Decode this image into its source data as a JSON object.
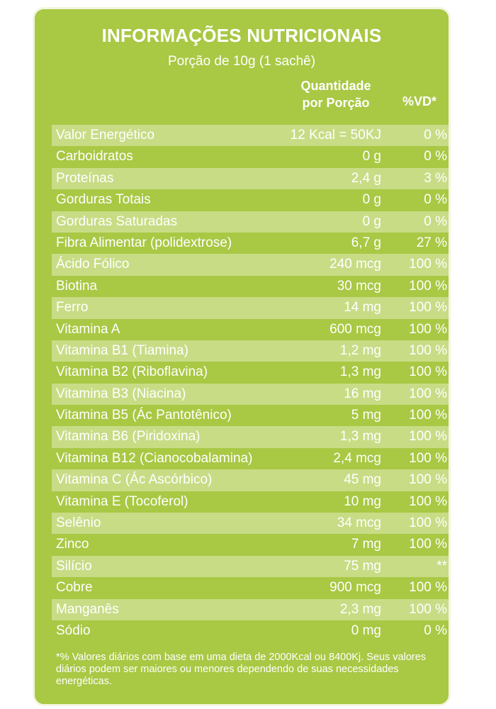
{
  "panel": {
    "title": "INFORMAÇÕES NUTRICIONAIS",
    "subtitle": "Porção de 10g (1 sachê)",
    "columns": {
      "qty_line1": "Quantidade",
      "qty_line2": "por Porção",
      "vd": "%VD*"
    },
    "rows": [
      {
        "name": "Valor Energético",
        "qty": "12 Kcal = 50KJ",
        "vd": "0 %"
      },
      {
        "name": "Carboidratos",
        "qty": "0 g",
        "vd": "0 %"
      },
      {
        "name": "Proteínas",
        "qty": "2,4 g",
        "vd": "3 %"
      },
      {
        "name": "Gorduras Totais",
        "qty": "0 g",
        "vd": "0 %"
      },
      {
        "name": "Gorduras Saturadas",
        "qty": "0 g",
        "vd": "0 %"
      },
      {
        "name": "Fibra Alimentar (polidextrose)",
        "qty": "6,7 g",
        "vd": "27 %"
      },
      {
        "name": "Ácido Fólico",
        "qty": "240 mcg",
        "vd": "100 %"
      },
      {
        "name": "Biotina",
        "qty": "30 mcg",
        "vd": "100 %"
      },
      {
        "name": "Ferro",
        "qty": "14 mg",
        "vd": "100 %"
      },
      {
        "name": "Vitamina A",
        "qty": "600 mcg",
        "vd": "100 %"
      },
      {
        "name": "Vitamina B1 (Tiamina)",
        "qty": "1,2 mg",
        "vd": "100 %"
      },
      {
        "name": "Vitamina B2 (Riboflavina)",
        "qty": "1,3 mg",
        "vd": "100 %"
      },
      {
        "name": "Vitamina B3 (Niacina)",
        "qty": "16 mg",
        "vd": "100 %"
      },
      {
        "name": "Vitamina B5 (Ác Pantotênico)",
        "qty": "5 mg",
        "vd": "100 %"
      },
      {
        "name": "Vitamina B6 (Piridoxina)",
        "qty": "1,3 mg",
        "vd": "100 %"
      },
      {
        "name": "Vitamina B12 (Cianocobalamina)",
        "qty": "2,4 mcg",
        "vd": "100 %"
      },
      {
        "name": "Vitamina C (Ác Ascórbico)",
        "qty": "45 mg",
        "vd": "100 %"
      },
      {
        "name": "Vitamina E (Tocoferol)",
        "qty": "10 mg",
        "vd": "100 %"
      },
      {
        "name": "Selênio",
        "qty": "34 mcg",
        "vd": "100 %"
      },
      {
        "name": "Zinco",
        "qty": "7 mg",
        "vd": "100 %"
      },
      {
        "name": "Silício",
        "qty": "75 mg",
        "vd": "**"
      },
      {
        "name": "Cobre",
        "qty": "900 mcg",
        "vd": "100 %"
      },
      {
        "name": "Manganês",
        "qty": "2,3 mg",
        "vd": "100 %"
      },
      {
        "name": "Sódio",
        "qty": "0 mg",
        "vd": "0 %"
      }
    ],
    "footnote": "*% Valores diários com base em uma dieta de 2000Kcal ou 8400Kj. Seus valores diários podem ser maiores ou menores dependendo de suas necessidades energéticas."
  },
  "colors": {
    "panel_bg": "#a9c844",
    "row_shade": "#c8dc86",
    "border": "#f2f6df",
    "text": "#ffffff"
  }
}
